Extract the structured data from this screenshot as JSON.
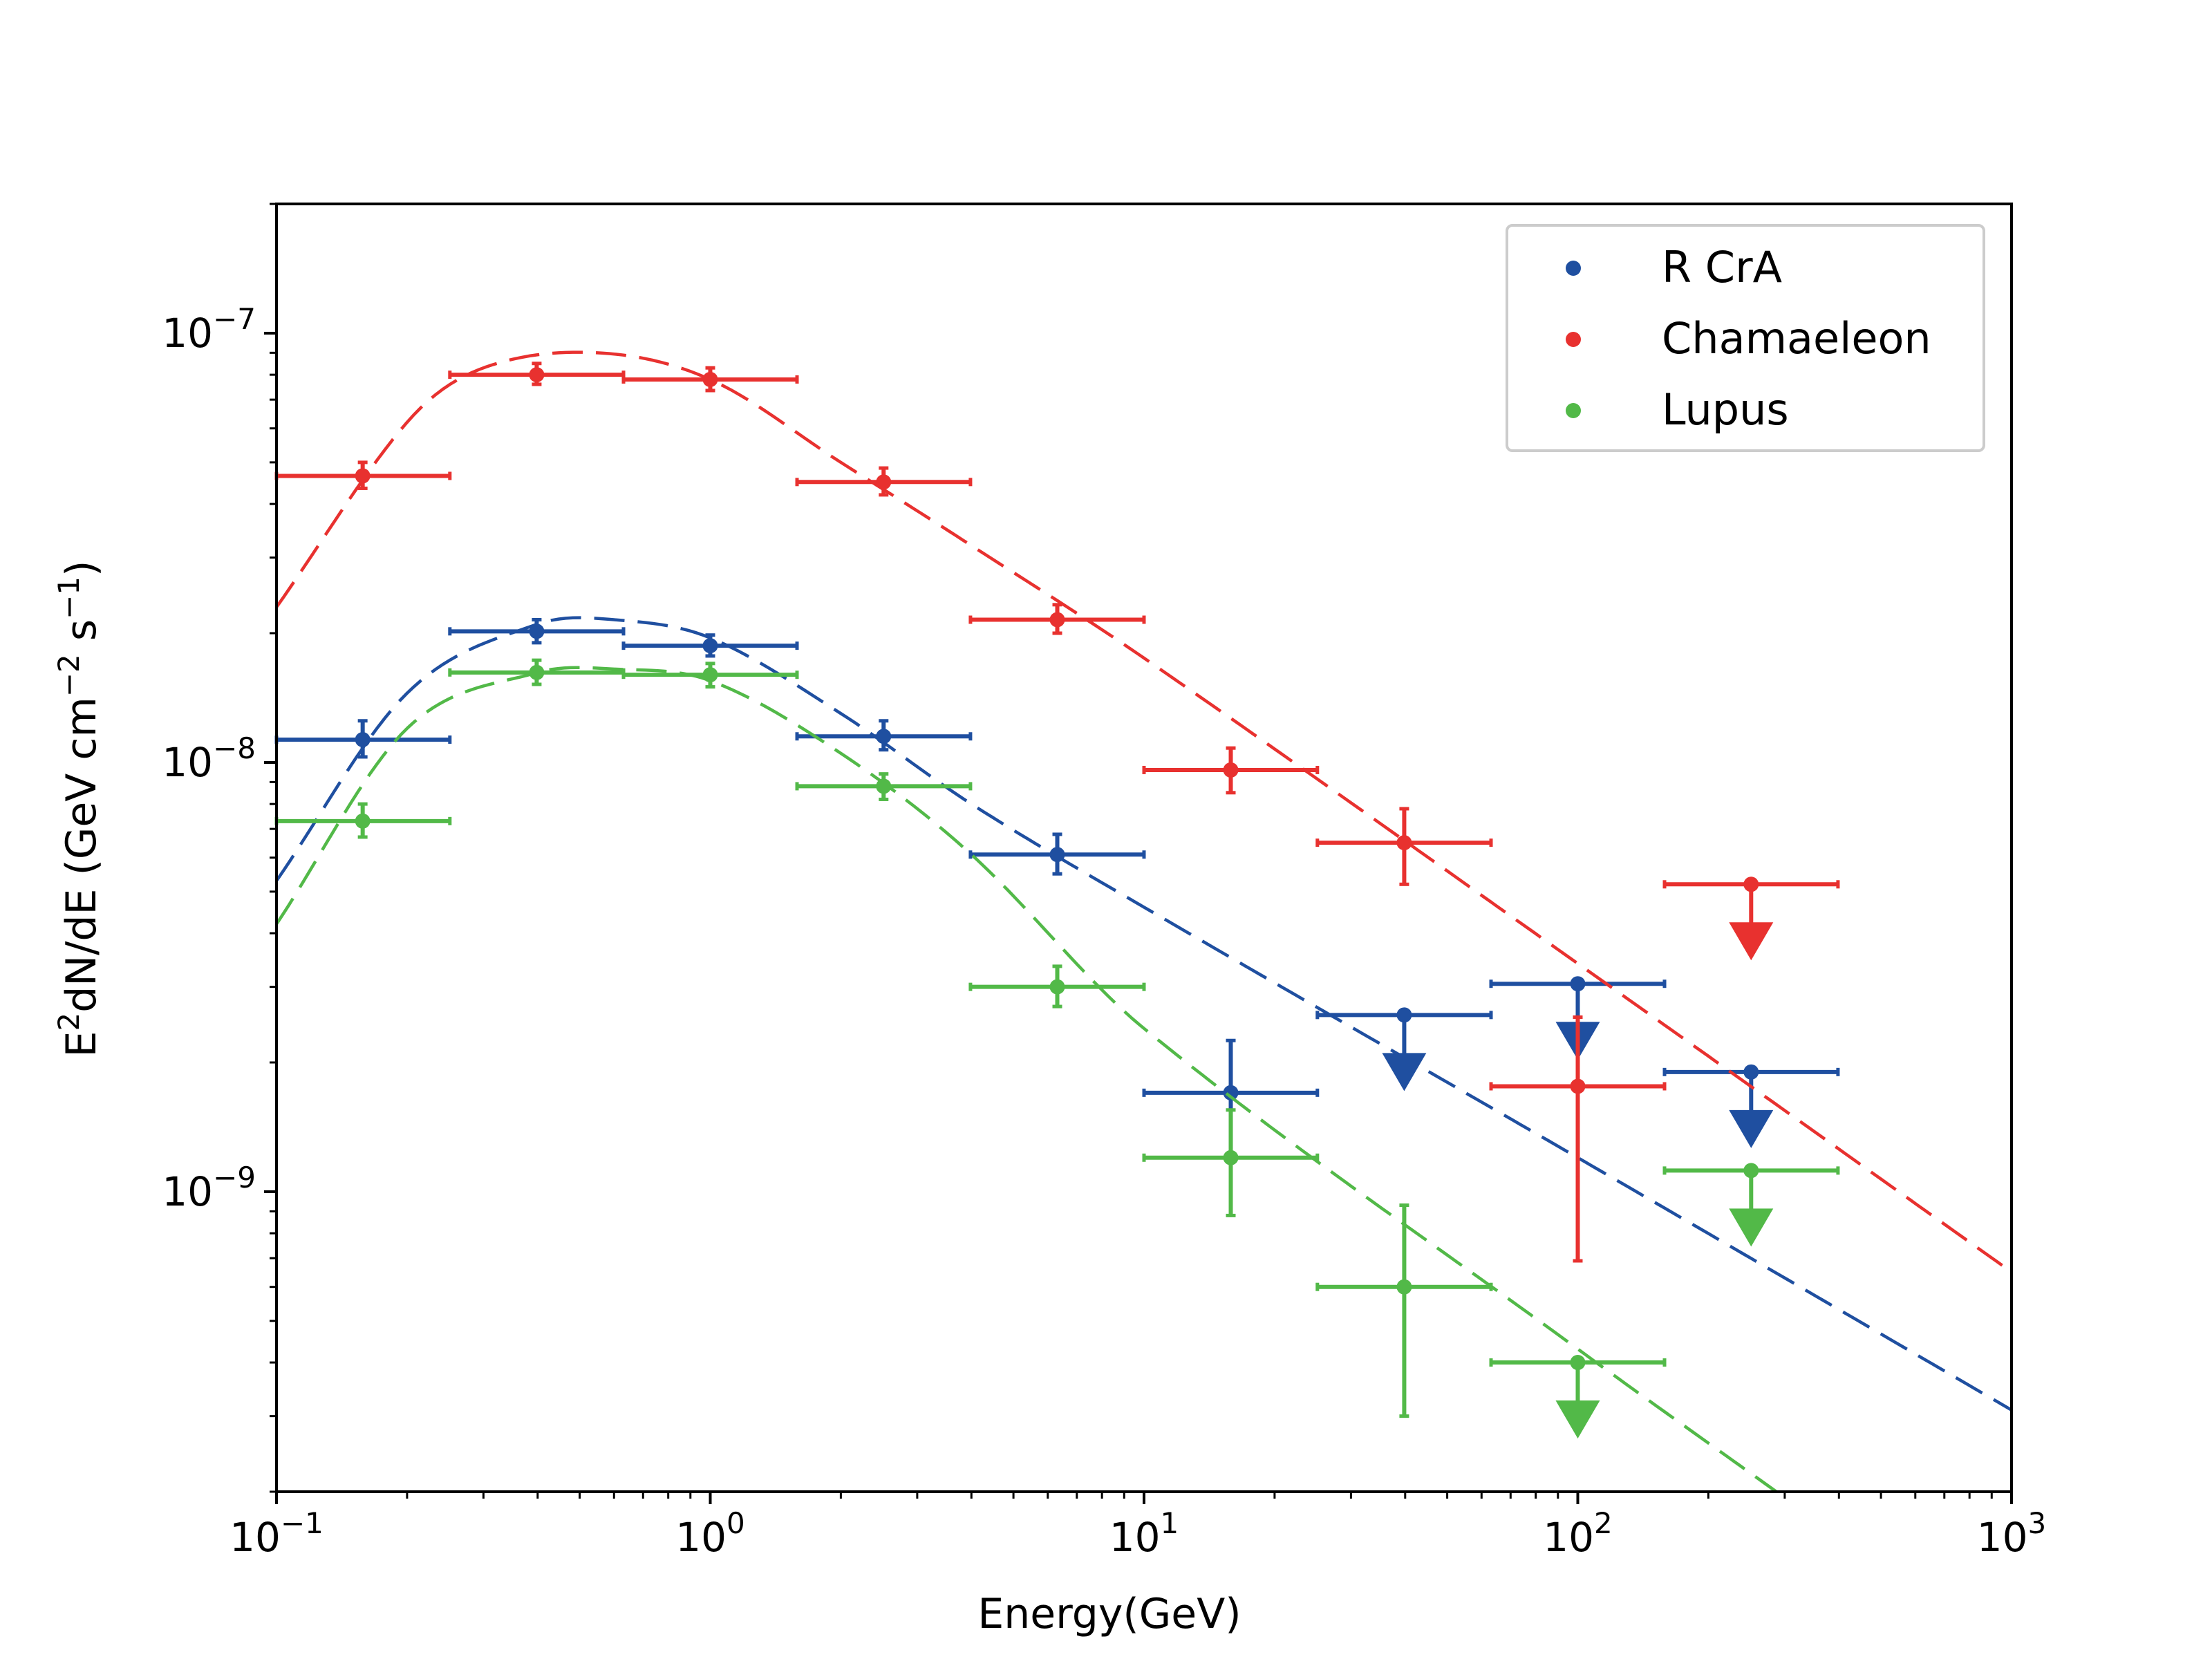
{
  "chart_data": {
    "type": "scatter",
    "title": "",
    "xlabel": "Energy(GeV)",
    "ylabel": "E²dN/dE (GeV cm⁻² s⁻¹)",
    "ylabel_parts": [
      "E",
      "2",
      "dN/dE (GeV cm",
      "−2",
      " s",
      "−1",
      ")"
    ],
    "x_scale": "log",
    "y_scale": "log",
    "xlim": [
      0.1,
      1000
    ],
    "ylim": [
      2e-10,
      2e-07
    ],
    "grid": false,
    "legend_position": "top-right",
    "x_ticks": [
      {
        "value": 0.1,
        "base": "10",
        "exp": "−1"
      },
      {
        "value": 1,
        "base": "10",
        "exp": "0"
      },
      {
        "value": 10,
        "base": "10",
        "exp": "1"
      },
      {
        "value": 100,
        "base": "10",
        "exp": "2"
      },
      {
        "value": 1000,
        "base": "10",
        "exp": "3"
      }
    ],
    "y_ticks": [
      {
        "value": 1e-09,
        "base": "10",
        "exp": "−9"
      },
      {
        "value": 1e-08,
        "base": "10",
        "exp": "−8"
      },
      {
        "value": 1e-07,
        "base": "10",
        "exp": "−7"
      }
    ],
    "series": [
      {
        "name": "R CrA",
        "color": "#1f4fa0",
        "points": [
          {
            "x": 0.158,
            "xlo": 0.1,
            "xhi": 0.251,
            "y": 1.13e-08,
            "ylo": 1.03e-08,
            "yhi": 1.25e-08,
            "ul": false
          },
          {
            "x": 0.398,
            "xlo": 0.251,
            "xhi": 0.631,
            "y": 2.02e-08,
            "ylo": 1.9e-08,
            "yhi": 2.15e-08,
            "ul": false
          },
          {
            "x": 1.0,
            "xlo": 0.631,
            "xhi": 1.585,
            "y": 1.87e-08,
            "ylo": 1.77e-08,
            "yhi": 1.98e-08,
            "ul": false
          },
          {
            "x": 2.51,
            "xlo": 1.585,
            "xhi": 3.98,
            "y": 1.15e-08,
            "ylo": 1.07e-08,
            "yhi": 1.25e-08,
            "ul": false
          },
          {
            "x": 6.31,
            "xlo": 3.98,
            "xhi": 10.0,
            "y": 6.1e-09,
            "ylo": 5.5e-09,
            "yhi": 6.8e-09,
            "ul": false
          },
          {
            "x": 15.85,
            "xlo": 10.0,
            "xhi": 25.1,
            "y": 1.7e-09,
            "ylo": 1.2e-09,
            "yhi": 2.25e-09,
            "ul": false
          },
          {
            "x": 39.8,
            "xlo": 25.1,
            "xhi": 63.1,
            "y": 2.58e-09,
            "ul": true
          },
          {
            "x": 100.0,
            "xlo": 63.1,
            "xhi": 158.5,
            "y": 3.05e-09,
            "ul": true
          },
          {
            "x": 251.0,
            "xlo": 158.5,
            "xhi": 398.0,
            "y": 1.9e-09,
            "ul": true
          }
        ],
        "model": {
          "x": [
            0.1,
            0.2,
            0.4,
            0.6,
            1.0,
            2.0,
            4.0,
            10,
            100,
            1000
          ],
          "y": [
            5.3e-09,
            1.45e-08,
            2.1e-08,
            2.15e-08,
            1.95e-08,
            1.3e-08,
            8e-09,
            4.6e-09,
            1.2e-09,
            3.1e-10
          ]
        }
      },
      {
        "name": "Chamaeleon",
        "color": "#e8312f",
        "points": [
          {
            "x": 0.158,
            "xlo": 0.1,
            "xhi": 0.251,
            "y": 4.65e-08,
            "ylo": 4.35e-08,
            "yhi": 5e-08,
            "ul": false
          },
          {
            "x": 0.398,
            "xlo": 0.251,
            "xhi": 0.631,
            "y": 8e-08,
            "ylo": 7.6e-08,
            "yhi": 8.5e-08,
            "ul": false
          },
          {
            "x": 1.0,
            "xlo": 0.631,
            "xhi": 1.585,
            "y": 7.8e-08,
            "ylo": 7.35e-08,
            "yhi": 8.3e-08,
            "ul": false
          },
          {
            "x": 2.51,
            "xlo": 1.585,
            "xhi": 3.98,
            "y": 4.5e-08,
            "ylo": 4.2e-08,
            "yhi": 4.85e-08,
            "ul": false
          },
          {
            "x": 6.31,
            "xlo": 3.98,
            "xhi": 10.0,
            "y": 2.15e-08,
            "ylo": 2e-08,
            "yhi": 2.33e-08,
            "ul": false
          },
          {
            "x": 15.85,
            "xlo": 10.0,
            "xhi": 25.1,
            "y": 9.6e-09,
            "ylo": 8.5e-09,
            "yhi": 1.08e-08,
            "ul": false
          },
          {
            "x": 39.8,
            "xlo": 25.1,
            "xhi": 63.1,
            "y": 6.5e-09,
            "ylo": 5.2e-09,
            "yhi": 7.8e-09,
            "ul": false
          },
          {
            "x": 100.0,
            "xlo": 63.1,
            "xhi": 158.5,
            "y": 1.76e-09,
            "ylo": 6.9e-10,
            "yhi": 2.55e-09,
            "ul": false
          },
          {
            "x": 251.0,
            "xlo": 158.5,
            "xhi": 398.0,
            "y": 5.2e-09,
            "ul": true
          }
        ],
        "model": {
          "x": [
            0.1,
            0.2,
            0.3,
            0.55,
            1.0,
            2.0,
            4.0,
            10,
            100,
            1000
          ],
          "y": [
            2.3e-08,
            6.2e-08,
            8.3e-08,
            9e-08,
            7.8e-08,
            5e-08,
            3.2e-08,
            1.75e-08,
            3.4e-09,
            6.5e-10
          ]
        }
      },
      {
        "name": "Lupus",
        "color": "#52b948",
        "points": [
          {
            "x": 0.158,
            "xlo": 0.1,
            "xhi": 0.251,
            "y": 7.3e-09,
            "ylo": 6.7e-09,
            "yhi": 8e-09,
            "ul": false
          },
          {
            "x": 0.398,
            "xlo": 0.251,
            "xhi": 0.631,
            "y": 1.62e-08,
            "ylo": 1.52e-08,
            "yhi": 1.73e-08,
            "ul": false
          },
          {
            "x": 1.0,
            "xlo": 0.631,
            "xhi": 1.585,
            "y": 1.6e-08,
            "ylo": 1.5e-08,
            "yhi": 1.7e-08,
            "ul": false
          },
          {
            "x": 2.51,
            "xlo": 1.585,
            "xhi": 3.98,
            "y": 8.8e-09,
            "ylo": 8.2e-09,
            "yhi": 9.4e-09,
            "ul": false
          },
          {
            "x": 6.31,
            "xlo": 3.98,
            "xhi": 10.0,
            "y": 3e-09,
            "ylo": 2.7e-09,
            "yhi": 3.35e-09,
            "ul": false
          },
          {
            "x": 15.85,
            "xlo": 10.0,
            "xhi": 25.1,
            "y": 1.2e-09,
            "ylo": 8.8e-10,
            "yhi": 1.55e-09,
            "ul": false
          },
          {
            "x": 39.8,
            "xlo": 25.1,
            "xhi": 63.1,
            "y": 6e-10,
            "ylo": 3e-10,
            "yhi": 9.3e-10,
            "ul": false
          },
          {
            "x": 100.0,
            "xlo": 63.1,
            "xhi": 158.5,
            "y": 4e-10,
            "ul": true
          },
          {
            "x": 251.0,
            "xlo": 158.5,
            "xhi": 398.0,
            "y": 1.12e-09,
            "ul": true
          }
        ],
        "model": {
          "x": [
            0.1,
            0.2,
            0.4,
            0.6,
            1.0,
            2.0,
            4.0,
            10,
            100,
            287
          ],
          "y": [
            4.2e-09,
            1.2e-08,
            1.62e-08,
            1.65e-08,
            1.55e-08,
            1.05e-08,
            6.1e-09,
            2.4e-09,
            4.3e-10,
            2e-10
          ]
        }
      }
    ]
  }
}
